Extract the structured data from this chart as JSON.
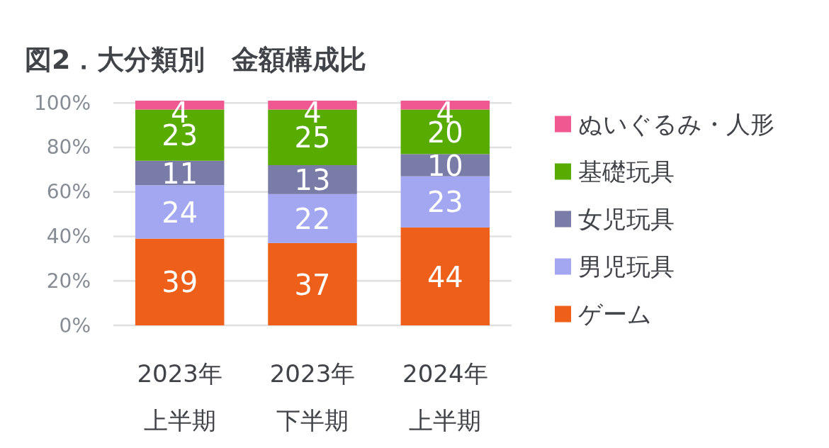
{
  "chart_data": {
    "type": "bar",
    "title": "図2．大分類別　金額構成比",
    "categories": [
      "2023年上半期",
      "2023年下半期",
      "2024年上半期"
    ],
    "stacked": true,
    "series": [
      {
        "name": "ゲーム",
        "color": "#ee6019",
        "values": [
          39,
          37,
          44
        ]
      },
      {
        "name": "男児玩具",
        "color": "#a3a7f2",
        "values": [
          24,
          22,
          23
        ]
      },
      {
        "name": "女児玩具",
        "color": "#7a7ca8",
        "values": [
          11,
          13,
          10
        ]
      },
      {
        "name": "基礎玩具",
        "color": "#58ab00",
        "values": [
          23,
          25,
          20
        ]
      },
      {
        "name": "ぬいぐるみ・人形",
        "color": "#ef5890",
        "values": [
          4,
          4,
          4
        ]
      }
    ],
    "ylim": [
      0,
      101
    ],
    "yticks": [
      {
        "value": 0,
        "label": "0%"
      },
      {
        "value": 20,
        "label": "20%"
      },
      {
        "value": 40,
        "label": "40%"
      },
      {
        "value": 60,
        "label": "60%"
      },
      {
        "value": 80,
        "label": "80%"
      },
      {
        "value": 100,
        "label": "100%"
      }
    ],
    "grid": "y",
    "legend": "right",
    "data_labels": true
  }
}
